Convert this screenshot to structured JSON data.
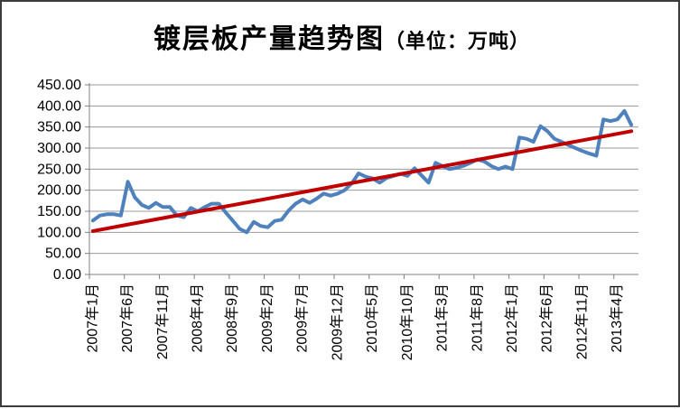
{
  "chart_data": {
    "type": "line",
    "title": "镀层板产量趋势图",
    "title_unit": "（单位：万吨）",
    "unit_shown": "万吨",
    "legend": "none",
    "grid": true,
    "ylim": [
      0,
      450
    ],
    "ytick_step": 50,
    "ytick_labels": [
      "450.00",
      "400.00",
      "350.00",
      "300.00",
      "250.00",
      "200.00",
      "150.00",
      "100.00",
      "50.00",
      "0.00"
    ],
    "xtick_interval_months": 5,
    "xtick_labels": [
      "2007年1月",
      "2007年6月",
      "2007年11月",
      "2008年4月",
      "2008年9月",
      "2009年2月",
      "2009年7月",
      "2009年12月",
      "2010年5月",
      "2010年10月",
      "2011年3月",
      "2011年8月",
      "2012年1月",
      "2012年6月",
      "2012年11月",
      "2013年4月"
    ],
    "x": [
      "2007年1月",
      "2007年2月",
      "2007年3月",
      "2007年4月",
      "2007年5月",
      "2007年6月",
      "2007年7月",
      "2007年8月",
      "2007年9月",
      "2007年10月",
      "2007年11月",
      "2007年12月",
      "2008年1月",
      "2008年2月",
      "2008年3月",
      "2008年4月",
      "2008年5月",
      "2008年6月",
      "2008年7月",
      "2008年8月",
      "2008年9月",
      "2008年10月",
      "2008年11月",
      "2008年12月",
      "2009年1月",
      "2009年2月",
      "2009年3月",
      "2009年4月",
      "2009年5月",
      "2009年6月",
      "2009年7月",
      "2009年8月",
      "2009年9月",
      "2009年10月",
      "2009年11月",
      "2009年12月",
      "2010年1月",
      "2010年2月",
      "2010年3月",
      "2010年4月",
      "2010年5月",
      "2010年6月",
      "2010年7月",
      "2010年8月",
      "2010年9月",
      "2010年10月",
      "2010年11月",
      "2010年12月",
      "2011年1月",
      "2011年2月",
      "2011年3月",
      "2011年4月",
      "2011年5月",
      "2011年6月",
      "2011年7月",
      "2011年8月",
      "2011年9月",
      "2011年10月",
      "2011年11月",
      "2011年12月",
      "2012年1月",
      "2012年2月",
      "2012年3月",
      "2012年4月",
      "2012年5月",
      "2012年6月",
      "2012年7月",
      "2012年8月",
      "2012年9月",
      "2012年10月",
      "2012年11月",
      "2012年12月",
      "2013年1月",
      "2013年2月",
      "2013年3月",
      "2013年4月",
      "2013年5月",
      "2013年6月"
    ],
    "series": [
      {
        "key": "production-line",
        "color": "#4F81BD",
        "values": [
          128,
          140,
          143,
          143,
          140,
          220,
          183,
          165,
          158,
          170,
          160,
          160,
          140,
          136,
          158,
          150,
          160,
          168,
          168,
          147,
          128,
          108,
          100,
          125,
          115,
          112,
          127,
          130,
          152,
          168,
          178,
          170,
          180,
          192,
          187,
          192,
          200,
          216,
          240,
          232,
          228,
          218,
          229,
          234,
          239,
          234,
          252,
          235,
          218,
          265,
          257,
          250,
          253,
          258,
          265,
          273,
          268,
          257,
          250,
          256,
          250,
          325,
          322,
          315,
          352,
          340,
          322,
          315,
          307,
          300,
          293,
          287,
          282,
          368,
          364,
          368,
          388,
          355
        ]
      },
      {
        "key": "trend-line",
        "color": "#C00000",
        "trend_endpoints": [
          103,
          340
        ]
      }
    ],
    "axis_color": "#808080",
    "grid_color": "#999999"
  }
}
